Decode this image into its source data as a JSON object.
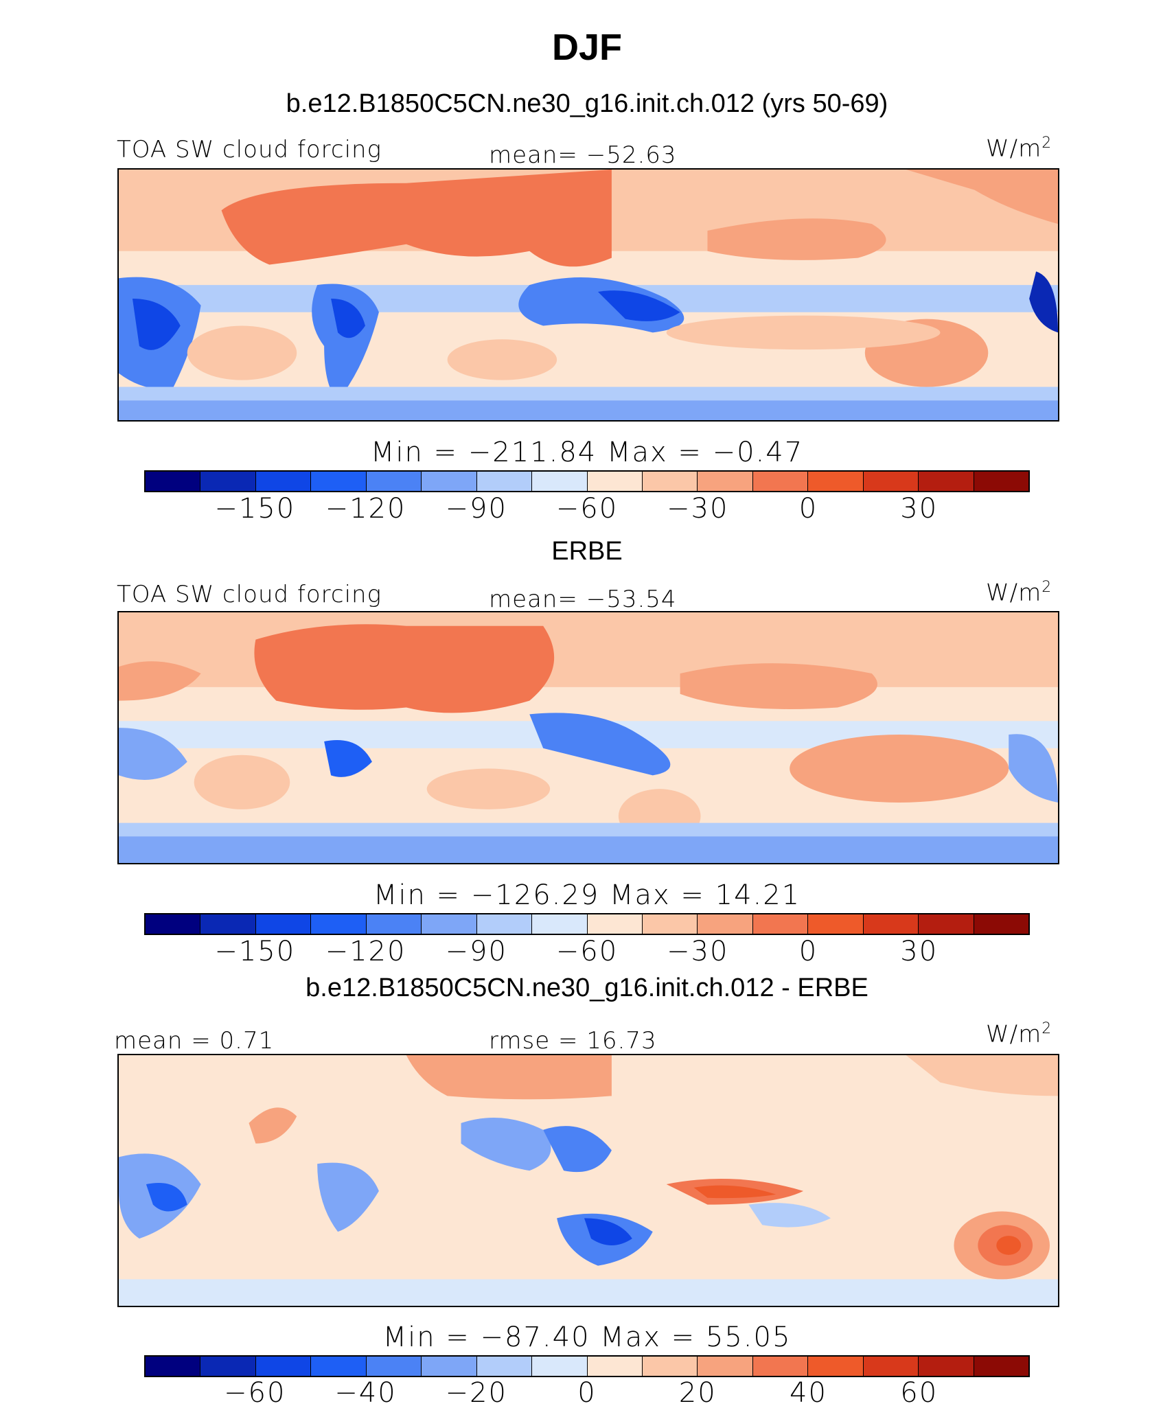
{
  "title": "DJF",
  "colors": {
    "scale": [
      "#00007f",
      "#0a28b4",
      "#0f46e6",
      "#1e5ff5",
      "#4b82f5",
      "#7ea6f7",
      "#b2cdfa",
      "#d9e8fb",
      "#fde6d3",
      "#fbc7a8",
      "#f7a37e",
      "#f27650",
      "#ee5a2a",
      "#d8391b",
      "#b41e10",
      "#8c0a05"
    ]
  },
  "panels": [
    {
      "id": "model",
      "heading": "b.e12.B1850C5CN.ne30_g16.init.ch.012 (yrs 50-69)",
      "left_label": "TOA SW cloud forcing",
      "center_label": "mean= −52.63",
      "units": "W/m",
      "units_sup": "2",
      "minmax": "Min = −211.84 Max = −0.47",
      "ticks": [
        "−150",
        "−120",
        "−90",
        "−60",
        "−30",
        "0",
        "30"
      ],
      "palette": "full"
    },
    {
      "id": "obs",
      "heading": "ERBE",
      "left_label": "TOA SW cloud forcing",
      "center_label": "mean= −53.54",
      "units": "W/m",
      "units_sup": "2",
      "minmax": "Min = −126.29 Max = 14.21",
      "ticks": [
        "−150",
        "−120",
        "−90",
        "−60",
        "−30",
        "0",
        "30"
      ],
      "palette": "full"
    },
    {
      "id": "diff",
      "heading": "b.e12.B1850C5CN.ne30_g16.init.ch.012 - ERBE",
      "left_label": "mean = 0.71",
      "center_label": "rmse = 16.73",
      "units": "W/m",
      "units_sup": "2",
      "minmax": "Min = −87.40 Max = 55.05",
      "ticks": [
        "−60",
        "−40",
        "−20",
        "0",
        "20",
        "40",
        "60"
      ],
      "palette": "full"
    }
  ]
}
